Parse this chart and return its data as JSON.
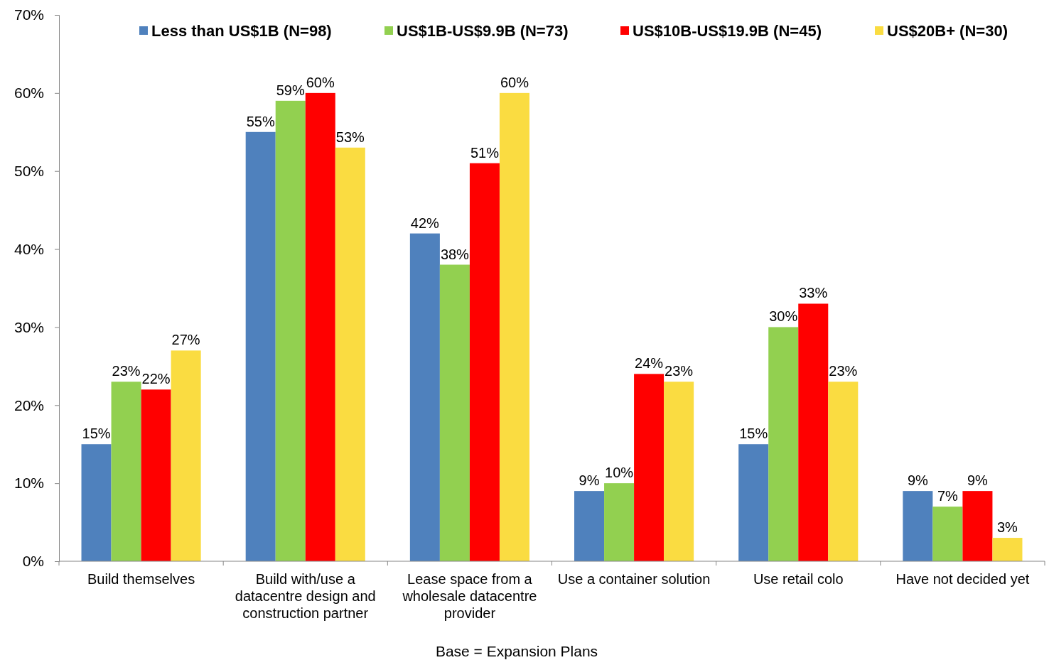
{
  "chart_data": {
    "type": "bar",
    "xlabel": "Base = Expansion Plans",
    "categories": [
      "Build themselves",
      "Build with/use a datacentre design and construction partner",
      "Lease space from a wholesale datacentre provider",
      "Use a container solution",
      "Use retail colo",
      "Have not decided yet"
    ],
    "series": [
      {
        "name": "Less than US$1B (N=98)",
        "color": "#4f81bd",
        "values": [
          15,
          55,
          42,
          9,
          15,
          9
        ],
        "value_labels": [
          "15%",
          "55%",
          "42%",
          "9%",
          "15%",
          "9%"
        ]
      },
      {
        "name": "US$1B-US$9.9B (N=73)",
        "color": "#92d050",
        "values": [
          23,
          59,
          38,
          10,
          30,
          7
        ],
        "value_labels": [
          "23%",
          "59%",
          "38%",
          "10%",
          "30%",
          "7%"
        ]
      },
      {
        "name": "US$10B-US$19.9B (N=45)",
        "color": "#ff0000",
        "values": [
          22,
          60,
          51,
          24,
          33,
          9
        ],
        "value_labels": [
          "22%",
          "60%",
          "51%",
          "24%",
          "33%",
          "9%"
        ]
      },
      {
        "name": "US$20B+ (N=30)",
        "color": "#fadc41",
        "values": [
          27,
          53,
          60,
          23,
          23,
          3
        ],
        "value_labels": [
          "27%",
          "53%",
          "60%",
          "23%",
          "23%",
          "3%"
        ]
      }
    ],
    "ylim": [
      0,
      70
    ],
    "yticks": [
      {
        "value": 0,
        "label": "0%"
      },
      {
        "value": 10,
        "label": "10%"
      },
      {
        "value": 20,
        "label": "20%"
      },
      {
        "value": 30,
        "label": "30%"
      },
      {
        "value": 40,
        "label": "40%"
      },
      {
        "value": 50,
        "label": "50%"
      },
      {
        "value": 60,
        "label": "60%"
      },
      {
        "value": 70,
        "label": "70%"
      }
    ],
    "grid": false,
    "legend": "top"
  }
}
